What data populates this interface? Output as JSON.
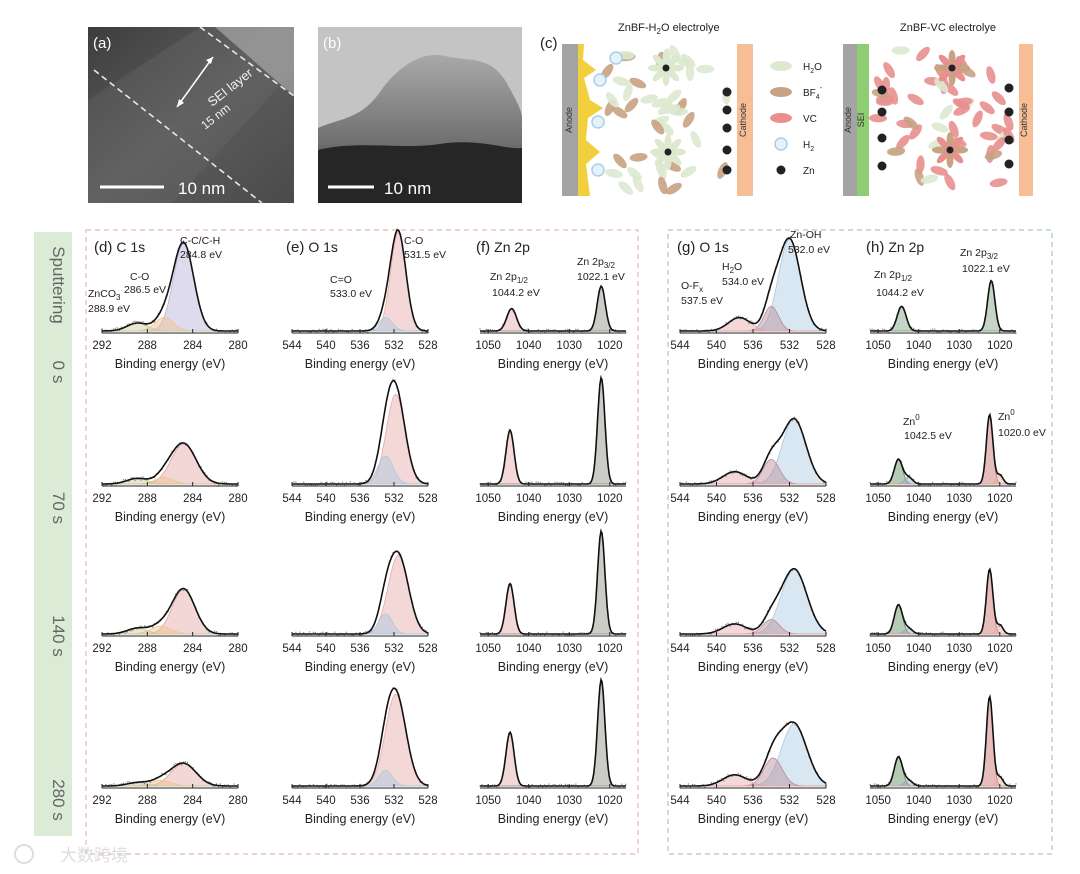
{
  "panel_a": {
    "label": "(a)",
    "annotation": "SEI layer",
    "thickness": "15 nm",
    "scale_bar": "10 nm"
  },
  "panel_b": {
    "label": "(b)",
    "scale_bar": "10 nm"
  },
  "panel_c": {
    "label": "(c)",
    "left_title_prefix": "ZnBF-H",
    "left_title_sub": "2",
    "left_title_suffix": "O electrolye",
    "right_title": "ZnBF-VC electrolye",
    "anode": "Anode",
    "cathode": "Cathode",
    "sei": "SEI",
    "legend": [
      {
        "label": "H",
        "sub": "2",
        "tail": "O",
        "color": "#dce9cf",
        "shape": "ellipse"
      },
      {
        "label": "BF",
        "sub": "4",
        "sup": "-",
        "color": "#c8a283",
        "shape": "ellipse"
      },
      {
        "label": "VC",
        "color": "#e98f8f",
        "shape": "ellipse"
      },
      {
        "label": "H",
        "sub": "2",
        "color": "#a9cfe6",
        "shape": "bubble"
      },
      {
        "label": "Zn",
        "color": "#222222",
        "shape": "dot"
      }
    ]
  },
  "sidebar": {
    "title": "Sputtering",
    "times": [
      "0 s",
      "70 s",
      "140 s",
      "280 s"
    ],
    "color": "#dcebd6"
  },
  "columns": {
    "C1s": {
      "label": "(d)",
      "element": "C 1s",
      "ticks": [
        "292",
        "288",
        "284",
        "280"
      ]
    },
    "O1s_left": {
      "label": "(e)",
      "element": "O 1s",
      "ticks": [
        "544",
        "540",
        "536",
        "532",
        "528"
      ]
    },
    "Zn2p_left": {
      "label": "(f)",
      "element": "Zn 2p",
      "ticks": [
        "1050",
        "1040",
        "1030",
        "1020"
      ]
    },
    "O1s_right": {
      "label": "(g)",
      "element": "O 1s",
      "ticks": [
        "544",
        "540",
        "536",
        "532",
        "528"
      ]
    },
    "Zn2p_right": {
      "label": "(h)",
      "element": "Zn 2p",
      "ticks": [
        "1050",
        "1040",
        "1030",
        "1020"
      ]
    }
  },
  "xlabel": "Binding energy (eV)",
  "peak_labels": {
    "d_ccch": "C-C/C-H",
    "d_ccch_val": "284.8 eV",
    "d_co": "C-O",
    "d_co_val": "286.5 eV",
    "d_znco3": "ZnCO",
    "d_znco3_sub": "3",
    "d_znco3_val": "288.9 eV",
    "e_co": "C-O",
    "e_co_val": "531.5 eV",
    "e_c_o": "C=O",
    "e_c_o_val": "533.0 eV",
    "f_p12": "Zn 2p",
    "f_p12_sub": "1/2",
    "f_p12_val": "1044.2 eV",
    "f_p32": "Zn 2p",
    "f_p32_sub": "3/2",
    "f_p32_val": "1022.1 eV",
    "g_znoh": "Zn-OH",
    "g_znoh_val": "532.0 eV",
    "g_h2o": "H",
    "g_h2o_sub": "2",
    "g_h2o_tail": "O",
    "g_h2o_val": "534.0 eV",
    "g_ofx": "O-F",
    "g_ofx_sub": "x",
    "g_ofx_val": "537.5 eV",
    "h_p12": "Zn 2p",
    "h_p12_sub": "1/2",
    "h_p12_val": "1044.2 eV",
    "h_p32": "Zn 2p",
    "h_p32_sub": "3/2",
    "h_p32_val": "1022.1 eV",
    "h_zn0_a": "Zn",
    "h_zn0_a_sup": "0",
    "h_zn0_a_val": "1042.5 eV",
    "h_zn0_b": "Zn",
    "h_zn0_b_sup": "0",
    "h_zn0_b_val": "1020.0 eV"
  },
  "watermark": "大数跨境",
  "chart_data": [
    {
      "type": "line",
      "title": "(d) C 1s",
      "xlabel": "Binding energy (eV)",
      "xlim": [
        292,
        280
      ],
      "reversed_x": true,
      "x_ticks": [
        292,
        288,
        284,
        280
      ],
      "series": [
        {
          "name": "0 s",
          "peaks": [
            {
              "center": 284.8,
              "height": 0.78,
              "sigma": 0.9,
              "color": "#b9b0d9"
            },
            {
              "center": 286.5,
              "height": 0.12,
              "sigma": 0.8,
              "color": "#f1c48c"
            },
            {
              "center": 288.9,
              "height": 0.07,
              "sigma": 0.9,
              "color": "#c9c9a0"
            }
          ]
        },
        {
          "name": "70 s",
          "peaks": [
            {
              "center": 284.8,
              "height": 0.36,
              "sigma": 1.1,
              "color": "#e5a3a3"
            },
            {
              "center": 286.5,
              "height": 0.06,
              "sigma": 0.8,
              "color": "#f1c48c"
            },
            {
              "center": 288.9,
              "height": 0.05,
              "sigma": 0.9,
              "color": "#c9c9a0"
            }
          ]
        },
        {
          "name": "140 s",
          "peaks": [
            {
              "center": 284.8,
              "height": 0.4,
              "sigma": 1.0,
              "color": "#e5a3a3"
            },
            {
              "center": 286.8,
              "height": 0.07,
              "sigma": 0.9,
              "color": "#f1c48c"
            },
            {
              "center": 288.9,
              "height": 0.05,
              "sigma": 0.9,
              "color": "#c9c9a0"
            }
          ]
        },
        {
          "name": "280 s",
          "peaks": [
            {
              "center": 284.8,
              "height": 0.2,
              "sigma": 1.1,
              "color": "#e5a3a3"
            },
            {
              "center": 286.8,
              "height": 0.05,
              "sigma": 0.9,
              "color": "#f1c48c"
            },
            {
              "center": 288.9,
              "height": 0.03,
              "sigma": 0.9,
              "color": "#c9c9a0"
            }
          ]
        }
      ]
    },
    {
      "type": "line",
      "title": "(e) O 1s",
      "xlabel": "Binding energy (eV)",
      "xlim": [
        544,
        528
      ],
      "reversed_x": true,
      "x_ticks": [
        544,
        540,
        536,
        532,
        528
      ],
      "series": [
        {
          "name": "0 s",
          "peaks": [
            {
              "center": 531.5,
              "height": 0.88,
              "sigma": 0.9,
              "color": "#e7a7a7"
            },
            {
              "center": 533.0,
              "height": 0.12,
              "sigma": 0.8,
              "color": "#a9c9e0"
            }
          ]
        },
        {
          "name": "70 s",
          "peaks": [
            {
              "center": 531.8,
              "height": 0.8,
              "sigma": 1.1,
              "color": "#e7a7a7"
            },
            {
              "center": 533.0,
              "height": 0.25,
              "sigma": 0.9,
              "color": "#a9c9e0"
            }
          ]
        },
        {
          "name": "140 s",
          "peaks": [
            {
              "center": 531.5,
              "height": 0.7,
              "sigma": 1.2,
              "color": "#e7a7a7"
            },
            {
              "center": 533.0,
              "height": 0.18,
              "sigma": 0.8,
              "color": "#a9c9e0"
            }
          ]
        },
        {
          "name": "280 s",
          "peaks": [
            {
              "center": 531.8,
              "height": 0.82,
              "sigma": 1.2,
              "color": "#e7a7a7"
            },
            {
              "center": 533.0,
              "height": 0.14,
              "sigma": 0.8,
              "color": "#a9c9e0"
            }
          ]
        }
      ]
    },
    {
      "type": "line",
      "title": "(f) Zn 2p",
      "xlabel": "Binding energy (eV)",
      "xlim": [
        1052,
        1016
      ],
      "reversed_x": true,
      "x_ticks": [
        1050,
        1040,
        1030,
        1020
      ],
      "series": [
        {
          "name": "0 s",
          "peaks": [
            {
              "center": 1044.2,
              "height": 0.2,
              "sigma": 1.2,
              "color": "#e7a7a7"
            },
            {
              "center": 1022.1,
              "height": 0.4,
              "sigma": 1.0,
              "color": "#8e8e80"
            }
          ]
        },
        {
          "name": "70 s",
          "peaks": [
            {
              "center": 1044.6,
              "height": 0.48,
              "sigma": 1.0,
              "color": "#e7a7a7"
            },
            {
              "center": 1022.1,
              "height": 0.95,
              "sigma": 0.9,
              "color": "#8e8e80"
            }
          ]
        },
        {
          "name": "140 s",
          "peaks": [
            {
              "center": 1044.6,
              "height": 0.45,
              "sigma": 1.0,
              "color": "#e7a7a7"
            },
            {
              "center": 1022.1,
              "height": 0.92,
              "sigma": 0.9,
              "color": "#8e8e80"
            }
          ]
        },
        {
          "name": "280 s",
          "peaks": [
            {
              "center": 1044.6,
              "height": 0.48,
              "sigma": 1.0,
              "color": "#e7a7a7"
            },
            {
              "center": 1022.1,
              "height": 0.95,
              "sigma": 0.9,
              "color": "#8e8e80"
            }
          ]
        }
      ]
    },
    {
      "type": "line",
      "title": "(g) O 1s",
      "xlabel": "Binding energy (eV)",
      "xlim": [
        544,
        528
      ],
      "reversed_x": true,
      "x_ticks": [
        544,
        540,
        536,
        532,
        528
      ],
      "series": [
        {
          "name": "0 s",
          "peaks": [
            {
              "center": 532.0,
              "height": 0.82,
              "sigma": 1.2,
              "color": "#a9c9e0"
            },
            {
              "center": 534.0,
              "height": 0.22,
              "sigma": 0.8,
              "color": "#b98a9a"
            },
            {
              "center": 537.5,
              "height": 0.12,
              "sigma": 1.2,
              "color": "#e7a7a7"
            }
          ]
        },
        {
          "name": "70 s",
          "peaks": [
            {
              "center": 531.5,
              "height": 0.58,
              "sigma": 1.3,
              "color": "#a9c9e0"
            },
            {
              "center": 534.0,
              "height": 0.22,
              "sigma": 0.9,
              "color": "#b98a9a"
            },
            {
              "center": 538.0,
              "height": 0.11,
              "sigma": 1.3,
              "color": "#e7a7a7"
            }
          ]
        },
        {
          "name": "140 s",
          "peaks": [
            {
              "center": 531.5,
              "height": 0.58,
              "sigma": 1.4,
              "color": "#a9c9e0"
            },
            {
              "center": 534.0,
              "height": 0.13,
              "sigma": 0.9,
              "color": "#b98a9a"
            },
            {
              "center": 538.0,
              "height": 0.09,
              "sigma": 1.3,
              "color": "#e7a7a7"
            }
          ]
        },
        {
          "name": "280 s",
          "peaks": [
            {
              "center": 531.5,
              "height": 0.55,
              "sigma": 1.4,
              "color": "#a9c9e0"
            },
            {
              "center": 533.8,
              "height": 0.25,
              "sigma": 1.0,
              "color": "#b98a9a"
            },
            {
              "center": 538.0,
              "height": 0.1,
              "sigma": 1.3,
              "color": "#e7a7a7"
            }
          ]
        }
      ]
    },
    {
      "type": "line",
      "title": "(h) Zn 2p",
      "xlabel": "Binding energy (eV)",
      "xlim": [
        1052,
        1016
      ],
      "reversed_x": true,
      "x_ticks": [
        1050,
        1040,
        1030,
        1020
      ],
      "series": [
        {
          "name": "0 s",
          "peaks": [
            {
              "center": 1044.2,
              "height": 0.22,
              "sigma": 1.1,
              "color": "#7fa27f"
            },
            {
              "center": 1022.1,
              "height": 0.45,
              "sigma": 0.9,
              "color": "#7fa27f"
            }
          ]
        },
        {
          "name": "70 s",
          "peaks": [
            {
              "center": 1045.0,
              "height": 0.22,
              "sigma": 1.0,
              "color": "#5e8a5e"
            },
            {
              "center": 1042.5,
              "height": 0.06,
              "sigma": 1.0,
              "color": "#8fa6c8"
            },
            {
              "center": 1022.5,
              "height": 0.62,
              "sigma": 0.8,
              "color": "#c96a6a"
            },
            {
              "center": 1020.0,
              "height": 0.08,
              "sigma": 0.8,
              "color": "#e3b0a0"
            }
          ]
        },
        {
          "name": "140 s",
          "peaks": [
            {
              "center": 1045.0,
              "height": 0.26,
              "sigma": 1.0,
              "color": "#5e8a5e"
            },
            {
              "center": 1042.5,
              "height": 0.05,
              "sigma": 1.0,
              "color": "#8fa6c8"
            },
            {
              "center": 1022.5,
              "height": 0.58,
              "sigma": 0.8,
              "color": "#c96a6a"
            },
            {
              "center": 1020.0,
              "height": 0.08,
              "sigma": 0.8,
              "color": "#e3b0a0"
            }
          ]
        },
        {
          "name": "280 s",
          "peaks": [
            {
              "center": 1045.0,
              "height": 0.26,
              "sigma": 1.0,
              "color": "#5e8a5e"
            },
            {
              "center": 1042.5,
              "height": 0.05,
              "sigma": 1.0,
              "color": "#8fa6c8"
            },
            {
              "center": 1022.5,
              "height": 0.8,
              "sigma": 0.8,
              "color": "#c96a6a"
            },
            {
              "center": 1020.0,
              "height": 0.08,
              "sigma": 0.8,
              "color": "#e3b0a0"
            }
          ]
        }
      ]
    }
  ]
}
